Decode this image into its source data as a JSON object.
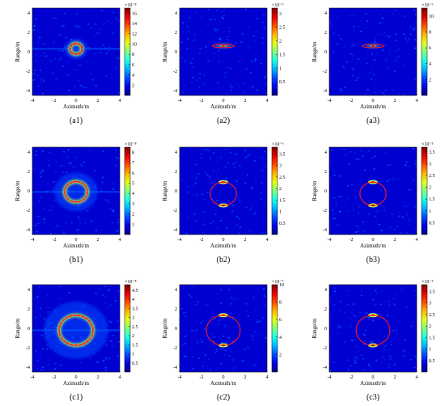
{
  "figure": {
    "rows": [
      {
        "panels": [
          {
            "label": "(a1)",
            "xlabel": "Azimuth/m",
            "ylabel": "Range/m",
            "cb_exponent": "×10⁻⁸",
            "cb_ticks": [
              2,
              4,
              6,
              8,
              10,
              12,
              14,
              16
            ],
            "cb_max": 17,
            "target": {
              "shape": "ring",
              "cx": 0,
              "cy": 0.3,
              "rx": 0.55,
              "ry": 0.55,
              "intensity": 1.0
            },
            "overlay": {
              "rx": 0.55,
              "ry": 0.55,
              "cy": 0.3
            }
          },
          {
            "label": "(a2)",
            "xlabel": "Azimuth/m",
            "ylabel": "Range/m",
            "cb_exponent": "×10⁻⁶",
            "cb_ticks": [
              0.5,
              1,
              1.5,
              2,
              2.5,
              3
            ],
            "cb_max": 3.2,
            "target": {
              "shape": "spot",
              "cx": 0,
              "cy": 0.6,
              "rx": 0.35,
              "ry": 0.08,
              "intensity": 1.0
            },
            "overlay": {
              "rx": 1.0,
              "ry": 0.18,
              "cy": 0.6
            }
          },
          {
            "label": "(a3)",
            "xlabel": "Azimuth/m",
            "ylabel": "Range/m",
            "cb_exponent": "×10⁻⁶",
            "cb_ticks": [
              2,
              4,
              6,
              8,
              10
            ],
            "cb_max": 11,
            "target": {
              "shape": "spot",
              "cx": 0,
              "cy": 0.6,
              "rx": 0.3,
              "ry": 0.07,
              "intensity": 1.0
            },
            "overlay": {
              "rx": 1.0,
              "ry": 0.18,
              "cy": 0.6
            }
          }
        ]
      },
      {
        "panels": [
          {
            "label": "(b1)",
            "xlabel": "Azimuth/m",
            "ylabel": "Range/m",
            "cb_exponent": "×10⁻⁸",
            "cb_ticks": [
              1,
              2,
              3,
              4,
              5,
              6,
              7,
              8
            ],
            "cb_max": 8.5,
            "target": {
              "shape": "ring",
              "cx": 0,
              "cy": -0.1,
              "rx": 1.05,
              "ry": 1.05,
              "intensity": 0.9
            },
            "overlay": {
              "rx": 1.05,
              "ry": 1.05,
              "cy": -0.1
            }
          },
          {
            "label": "(b2)",
            "xlabel": "Azimuth/m",
            "ylabel": "Range/m",
            "cb_exponent": "×10⁻⁶",
            "cb_ticks": [
              0.5,
              1,
              1.5,
              2,
              2.5,
              3,
              3.5
            ],
            "cb_max": 3.8,
            "target": {
              "shape": "twin",
              "cx": 0,
              "cy": -0.3,
              "rx": 1.2,
              "ry": 1.2,
              "intensity": 1.0
            },
            "overlay": {
              "rx": 1.2,
              "ry": 1.2,
              "cy": -0.3
            }
          },
          {
            "label": "(b3)",
            "xlabel": "Azimuth/m",
            "ylabel": "Range/m",
            "cb_exponent": "×10⁻⁵",
            "cb_ticks": [
              0.5,
              1,
              1.5,
              2,
              2.5,
              3,
              3.5
            ],
            "cb_max": 3.7,
            "target": {
              "shape": "twin",
              "cx": 0,
              "cy": -0.3,
              "rx": 1.2,
              "ry": 1.2,
              "intensity": 1.0
            },
            "overlay": {
              "rx": 1.2,
              "ry": 1.2,
              "cy": -0.3
            }
          }
        ]
      },
      {
        "panels": [
          {
            "label": "(c1)",
            "xlabel": "Azimuth/m",
            "ylabel": "Range/m",
            "cb_exponent": "×10⁻⁸",
            "cb_ticks": [
              0.5,
              1,
              1.5,
              2,
              2.5,
              3,
              3.5,
              4,
              4.5
            ],
            "cb_max": 4.8,
            "target": {
              "shape": "ring",
              "cx": 0,
              "cy": -0.2,
              "rx": 1.55,
              "ry": 1.55,
              "intensity": 0.9
            },
            "overlay": {
              "rx": 1.55,
              "ry": 1.55,
              "cy": -0.2
            }
          },
          {
            "label": "(c2)",
            "xlabel": "Azimuth/m",
            "ylabel": "Range/m",
            "cb_exponent": "×10⁻⁷",
            "cb_ticks": [
              2,
              4,
              6,
              8,
              10
            ],
            "cb_max": 10,
            "target": {
              "shape": "twin",
              "cx": 0,
              "cy": -0.2,
              "rx": 1.55,
              "ry": 1.55,
              "intensity": 1.0
            },
            "overlay": {
              "rx": 1.55,
              "ry": 1.55,
              "cy": -0.2
            }
          },
          {
            "label": "(c3)",
            "xlabel": "Azimuth/m",
            "ylabel": "Range/m",
            "cb_exponent": "×10⁻⁵",
            "cb_ticks": [
              0.5,
              1,
              1.5,
              2,
              2.5,
              3,
              3.5
            ],
            "cb_max": 3.8,
            "target": {
              "shape": "twin",
              "cx": 0,
              "cy": -0.2,
              "rx": 1.55,
              "ry": 1.55,
              "intensity": 1.0
            },
            "overlay": {
              "rx": 1.55,
              "ry": 1.55,
              "cy": -0.2
            }
          }
        ]
      }
    ]
  },
  "chart_data": {
    "type": "heatmap",
    "xlim": [
      -4,
      4
    ],
    "ylim": [
      -4.5,
      4.5
    ],
    "x_ticks": [
      -4,
      -2,
      0,
      2,
      4
    ],
    "y_ticks": [
      -4,
      -2,
      0,
      2,
      4
    ],
    "colormap": "jet",
    "overlay_color": "#ff1a1a"
  }
}
